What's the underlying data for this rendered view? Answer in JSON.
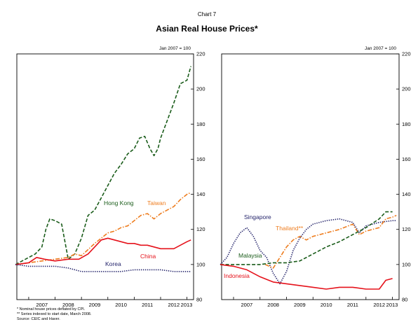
{
  "chart_number": "Chart 7",
  "title": "Asian Real House Prices*",
  "footnotes": [
    "* Nominal house prices deflated by CPI.",
    "** Series indexed to start date, March 2008.",
    "Source: CEIC and Haver."
  ],
  "chart_data": [
    {
      "type": "line",
      "panel": "left",
      "index_label": "Jan 2007 = 100",
      "x_ticks": [
        "2007",
        "2008",
        "2009",
        "2010",
        "2011",
        "2012",
        "2013"
      ],
      "ylim": [
        80,
        220
      ],
      "y_ticks": [
        80,
        100,
        120,
        140,
        160,
        180,
        200,
        220
      ],
      "grid": false,
      "series": [
        {
          "name": "Hong Kong",
          "color": "#1a5c1a",
          "dash": "5,2.5",
          "x": [
            2006.5,
            2007.0,
            2007.25,
            2007.5,
            2007.65,
            2007.8,
            2008.0,
            2008.25,
            2008.5,
            2008.75,
            2009.0,
            2009.25,
            2009.5,
            2009.75,
            2010.0,
            2010.25,
            2010.5,
            2010.75,
            2011.0,
            2011.2,
            2011.4,
            2011.6,
            2011.75,
            2011.9,
            2012.0,
            2012.25,
            2012.5,
            2012.75,
            2013.0,
            2013.15
          ],
          "y": [
            100,
            104,
            106,
            110,
            120,
            126,
            125,
            123,
            103,
            106,
            115,
            128,
            131,
            138,
            145,
            152,
            157,
            163,
            166,
            172,
            173,
            166,
            162,
            166,
            172,
            182,
            192,
            203,
            205,
            213
          ]
        },
        {
          "name": "Taiwan",
          "color": "#ee7d1f",
          "dash": "6,2,1.5,2",
          "x": [
            2006.5,
            2007.0,
            2007.5,
            2008.0,
            2008.5,
            2008.75,
            2009.0,
            2009.5,
            2010.0,
            2010.25,
            2010.5,
            2010.75,
            2011.0,
            2011.25,
            2011.5,
            2011.75,
            2012.0,
            2012.25,
            2012.5,
            2012.75,
            2013.0,
            2013.15
          ],
          "y": [
            100,
            101,
            102,
            103,
            104,
            106,
            105,
            112,
            118,
            119,
            121,
            122,
            125,
            128,
            129,
            126,
            129,
            131,
            133,
            137,
            140,
            141
          ]
        },
        {
          "name": "China",
          "color": "#e5121b",
          "dash": "",
          "x": [
            2006.5,
            2007.0,
            2007.3,
            2007.6,
            2008.0,
            2008.5,
            2008.9,
            2009.25,
            2009.5,
            2009.75,
            2010.0,
            2010.25,
            2010.5,
            2010.75,
            2011.0,
            2011.25,
            2011.5,
            2011.75,
            2012.0,
            2012.25,
            2012.5,
            2012.75,
            2013.0,
            2013.15
          ],
          "y": [
            100,
            101,
            104,
            103,
            102,
            103,
            103,
            106,
            110,
            114,
            115,
            114,
            113,
            112,
            112,
            111,
            111,
            110,
            109,
            109,
            109,
            111,
            113,
            114
          ]
        },
        {
          "name": "Korea",
          "color": "#24246b",
          "dash": "1.4,1.6",
          "x": [
            2006.5,
            2007.0,
            2007.5,
            2008.0,
            2008.5,
            2009.0,
            2009.5,
            2010.0,
            2010.5,
            2011.0,
            2011.5,
            2012.0,
            2012.5,
            2013.0,
            2013.15
          ],
          "y": [
            100,
            99,
            99,
            99,
            98,
            96,
            96,
            96,
            96,
            97,
            97,
            97,
            96,
            96,
            96
          ]
        }
      ]
    },
    {
      "type": "line",
      "panel": "right",
      "index_label": "Jan 2007 = 100",
      "x_ticks": [
        "2007",
        "2008",
        "2009",
        "2010",
        "2011",
        "2012",
        "2013"
      ],
      "ylim": [
        80,
        220
      ],
      "y_ticks": [
        80,
        100,
        120,
        140,
        160,
        180,
        200,
        220
      ],
      "grid": false,
      "series": [
        {
          "name": "Singapore",
          "color": "#24246b",
          "dash": "1.4,1.6",
          "x": [
            2006.5,
            2006.75,
            2007.0,
            2007.25,
            2007.5,
            2007.75,
            2008.0,
            2008.25,
            2008.5,
            2008.75,
            2009.0,
            2009.25,
            2009.5,
            2009.75,
            2010.0,
            2010.5,
            2011.0,
            2011.5,
            2011.75,
            2012.0,
            2012.5,
            2013.0,
            2013.15
          ],
          "y": [
            100,
            104,
            112,
            118,
            121,
            116,
            108,
            104,
            95,
            89,
            96,
            108,
            115,
            120,
            123,
            125,
            126,
            124,
            118,
            122,
            124,
            125,
            125
          ]
        },
        {
          "name": "Thailand**",
          "color": "#ee7d1f",
          "dash": "6,2,1.5,2",
          "x": [
            2008.2,
            2008.5,
            2008.75,
            2009.0,
            2009.25,
            2009.5,
            2009.75,
            2010.0,
            2010.5,
            2011.0,
            2011.5,
            2011.75,
            2012.0,
            2012.5,
            2012.75,
            2013.0,
            2013.15
          ],
          "y": [
            100,
            98,
            104,
            110,
            114,
            116,
            114,
            116,
            118,
            120,
            123,
            117,
            119,
            121,
            126,
            127,
            128
          ]
        },
        {
          "name": "Malaysia",
          "color": "#1a5c1a",
          "dash": "5,2.5",
          "x": [
            2006.5,
            2007.0,
            2007.5,
            2008.0,
            2008.5,
            2009.0,
            2009.5,
            2010.0,
            2010.5,
            2011.0,
            2011.5,
            2012.0,
            2012.5,
            2012.75,
            2013.0
          ],
          "y": [
            100,
            100,
            100,
            100,
            101,
            101,
            102,
            106,
            110,
            113,
            117,
            121,
            126,
            130,
            130
          ]
        },
        {
          "name": "Indonesia",
          "color": "#e5121b",
          "dash": "",
          "x": [
            2006.5,
            2007.0,
            2007.5,
            2008.0,
            2008.5,
            2009.0,
            2009.5,
            2010.0,
            2010.5,
            2011.0,
            2011.5,
            2012.0,
            2012.5,
            2012.75,
            2013.0
          ],
          "y": [
            100,
            99,
            97,
            93,
            90,
            89,
            88,
            87,
            86,
            87,
            87,
            86,
            86,
            91,
            92
          ]
        }
      ]
    }
  ]
}
